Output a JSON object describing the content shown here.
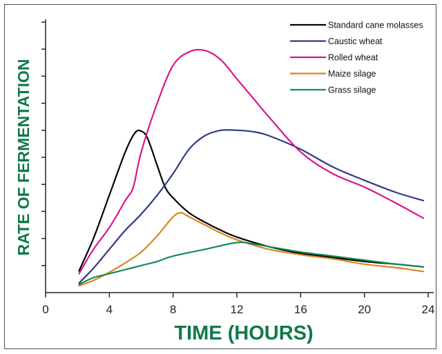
{
  "chart_data": {
    "type": "line",
    "xlabel": "TIME (HOURS)",
    "ylabel": "RATE OF FERMENTATION",
    "xlim": [
      0,
      24
    ],
    "ylim": [
      0,
      10
    ],
    "x_ticks": [
      0,
      4,
      8,
      12,
      16,
      20,
      24
    ],
    "y_ticks": [
      1,
      2,
      3,
      4,
      5,
      6,
      7,
      8,
      9,
      10
    ],
    "grid": false,
    "legend_position": "top-right",
    "series": [
      {
        "name": "Standard cane molasses",
        "color": "#000000",
        "points": [
          [
            2.1,
            0.8
          ],
          [
            3,
            2.0
          ],
          [
            4,
            3.6
          ],
          [
            5,
            5.2
          ],
          [
            5.6,
            5.9
          ],
          [
            6,
            5.97
          ],
          [
            6.4,
            5.7
          ],
          [
            7,
            4.7
          ],
          [
            7.5,
            3.9
          ],
          [
            8,
            3.5
          ],
          [
            9,
            2.95
          ],
          [
            10,
            2.6
          ],
          [
            11,
            2.3
          ],
          [
            12,
            2.05
          ],
          [
            14,
            1.7
          ],
          [
            16,
            1.45
          ],
          [
            18,
            1.3
          ],
          [
            20,
            1.15
          ],
          [
            22,
            1.05
          ],
          [
            23.7,
            0.95
          ]
        ]
      },
      {
        "name": "Caustic wheat",
        "color": "#2e3a87",
        "points": [
          [
            2.1,
            0.35
          ],
          [
            3,
            0.9
          ],
          [
            4,
            1.6
          ],
          [
            5,
            2.3
          ],
          [
            6,
            2.9
          ],
          [
            7,
            3.6
          ],
          [
            8,
            4.4
          ],
          [
            9,
            5.3
          ],
          [
            10,
            5.8
          ],
          [
            11,
            6.0
          ],
          [
            12,
            6.0
          ],
          [
            13,
            5.95
          ],
          [
            14,
            5.8
          ],
          [
            16,
            5.3
          ],
          [
            18,
            4.65
          ],
          [
            20,
            4.15
          ],
          [
            22,
            3.7
          ],
          [
            23.7,
            3.4
          ]
        ]
      },
      {
        "name": "Rolled wheat",
        "color": "#d6158c",
        "points": [
          [
            2.1,
            0.7
          ],
          [
            3,
            1.6
          ],
          [
            4,
            2.4
          ],
          [
            5,
            3.4
          ],
          [
            5.5,
            3.9
          ],
          [
            6,
            5.2
          ],
          [
            7,
            7.0
          ],
          [
            8,
            8.4
          ],
          [
            9,
            8.9
          ],
          [
            10,
            8.95
          ],
          [
            11,
            8.6
          ],
          [
            12,
            7.9
          ],
          [
            13,
            7.2
          ],
          [
            14,
            6.5
          ],
          [
            16,
            5.2
          ],
          [
            18,
            4.4
          ],
          [
            20,
            3.9
          ],
          [
            22,
            3.3
          ],
          [
            23.7,
            2.75
          ]
        ]
      },
      {
        "name": "Maize silage",
        "color": "#d9861e",
        "points": [
          [
            2.1,
            0.25
          ],
          [
            3,
            0.45
          ],
          [
            4,
            0.75
          ],
          [
            5,
            1.1
          ],
          [
            6,
            1.5
          ],
          [
            7,
            2.1
          ],
          [
            8,
            2.8
          ],
          [
            8.5,
            2.95
          ],
          [
            9,
            2.8
          ],
          [
            10,
            2.5
          ],
          [
            11,
            2.2
          ],
          [
            12,
            1.95
          ],
          [
            14,
            1.6
          ],
          [
            16,
            1.4
          ],
          [
            18,
            1.25
          ],
          [
            20,
            1.05
          ],
          [
            22,
            0.92
          ],
          [
            23.7,
            0.78
          ]
        ]
      },
      {
        "name": "Grass silage",
        "color": "#138a5c",
        "points": [
          [
            2.1,
            0.3
          ],
          [
            3,
            0.55
          ],
          [
            4,
            0.7
          ],
          [
            5,
            0.85
          ],
          [
            6,
            1.0
          ],
          [
            7,
            1.15
          ],
          [
            8,
            1.35
          ],
          [
            10,
            1.6
          ],
          [
            12,
            1.85
          ],
          [
            13,
            1.8
          ],
          [
            14,
            1.7
          ],
          [
            16,
            1.5
          ],
          [
            18,
            1.35
          ],
          [
            20,
            1.2
          ],
          [
            22,
            1.05
          ],
          [
            23.7,
            0.95
          ]
        ]
      }
    ]
  }
}
